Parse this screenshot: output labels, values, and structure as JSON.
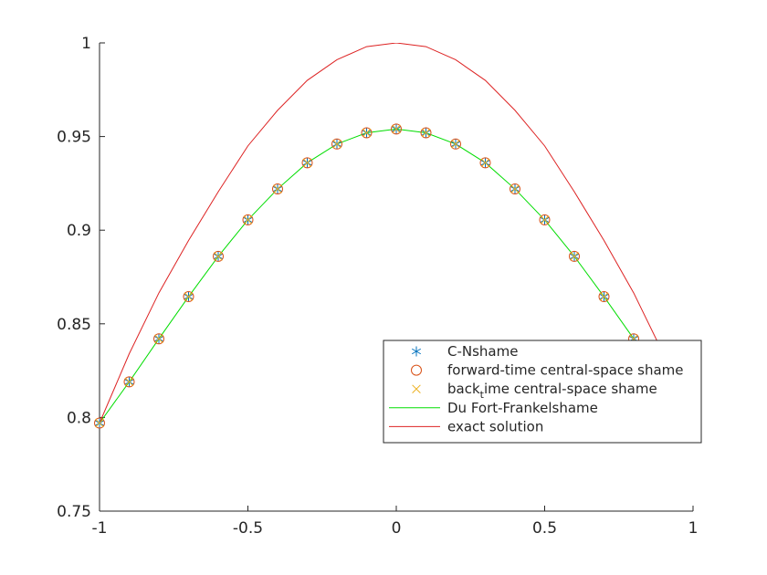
{
  "chart_data": {
    "type": "line",
    "title": "",
    "xlabel": "",
    "ylabel": "",
    "xlim": [
      -1,
      1
    ],
    "ylim": [
      0.75,
      1
    ],
    "x_ticks": [
      -1,
      -0.5,
      0,
      0.5,
      1
    ],
    "x_tick_labels": [
      "-1",
      "-0.5",
      "0",
      "0.5",
      "1"
    ],
    "y_ticks": [
      0.75,
      0.8,
      0.85,
      0.9,
      0.95,
      1
    ],
    "y_tick_labels": [
      "0.75",
      "0.8",
      "0.85",
      "0.9",
      "0.95",
      "1"
    ],
    "grid": false,
    "legend_placement": "lower-right",
    "x": [
      -1,
      -0.9,
      -0.8,
      -0.7,
      -0.6,
      -0.5,
      -0.4,
      -0.3,
      -0.2,
      -0.1,
      0,
      0.1,
      0.2,
      0.3,
      0.4,
      0.5,
      0.6,
      0.7,
      0.8,
      0.9,
      1
    ],
    "series": [
      {
        "name": "C-Nshame",
        "style": "markers",
        "marker": "asterisk",
        "color": "#0072bd",
        "values": [
          0.797,
          0.819,
          0.842,
          0.8645,
          0.886,
          0.9055,
          0.922,
          0.936,
          0.946,
          0.952,
          0.954,
          0.952,
          0.946,
          0.936,
          0.922,
          0.9055,
          0.886,
          0.8645,
          0.842,
          0.819,
          0.797
        ]
      },
      {
        "name": "forward-time central-space shame",
        "style": "markers",
        "marker": "circle",
        "color": "#d95319",
        "values": [
          0.797,
          0.819,
          0.842,
          0.8645,
          0.886,
          0.9055,
          0.922,
          0.936,
          0.946,
          0.952,
          0.954,
          0.952,
          0.946,
          0.936,
          0.922,
          0.9055,
          0.886,
          0.8645,
          0.842,
          0.819,
          0.797
        ]
      },
      {
        "name": "back",
        "name_subscript": "t",
        "name_suffix": "ime central-space shame",
        "style": "markers",
        "marker": "cross",
        "color": "#edb120",
        "values": [
          0.797,
          0.819,
          0.842,
          0.8645,
          0.886,
          0.9055,
          0.922,
          0.936,
          0.946,
          0.952,
          0.954,
          0.952,
          0.946,
          0.936,
          0.922,
          0.9055,
          0.886,
          0.8645,
          0.842,
          0.819,
          0.797
        ]
      },
      {
        "name": "Du Fort-Frankelshame",
        "style": "line",
        "color": "#00dd00",
        "values": [
          0.797,
          0.819,
          0.842,
          0.8645,
          0.886,
          0.9055,
          0.922,
          0.936,
          0.946,
          0.952,
          0.954,
          0.952,
          0.946,
          0.936,
          0.922,
          0.9055,
          0.886,
          0.8645,
          0.842,
          0.819,
          0.797
        ]
      },
      {
        "name": "exact solution",
        "style": "line",
        "color": "#dd2222",
        "values": [
          0.797,
          0.834,
          0.8665,
          0.8945,
          0.9205,
          0.945,
          0.964,
          0.98,
          0.991,
          0.998,
          1.0,
          0.998,
          0.991,
          0.98,
          0.964,
          0.945,
          0.9205,
          0.8945,
          0.8665,
          0.834,
          0.797
        ]
      }
    ]
  }
}
